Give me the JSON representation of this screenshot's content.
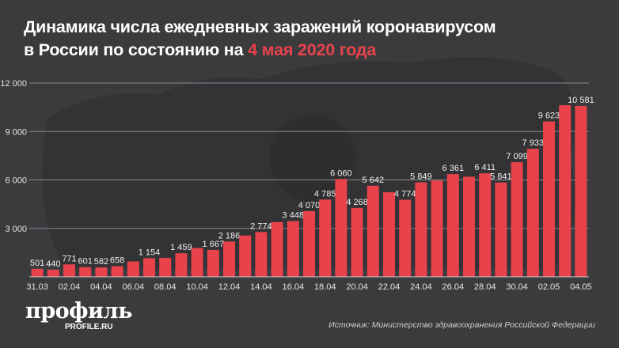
{
  "title": {
    "line1": "Динамика числа ежедневных заражений коронавирусом",
    "line2_prefix": "в России по состоянию на ",
    "line2_accent": "4 мая 2020 года"
  },
  "colors": {
    "background": "#3b3b3e",
    "bar": "#e8434a",
    "accent": "#e8434a",
    "text": "#ffffff"
  },
  "chart_data": {
    "type": "bar",
    "title": "Динамика числа ежедневных заражений коронавирусом в России по состоянию на 4 мая 2020 года",
    "categories": [
      "31.03",
      "01.04",
      "02.04",
      "03.04",
      "04.04",
      "05.04",
      "06.04",
      "07.04",
      "08.04",
      "09.04",
      "10.04",
      "11.04",
      "12.04",
      "13.04",
      "14.04",
      "15.04",
      "16.04",
      "17.04",
      "18.04",
      "19.04",
      "20.04",
      "21.04",
      "22.04",
      "23.04",
      "24.04",
      "25.04",
      "26.04",
      "27.04",
      "28.04",
      "29.04",
      "30.04",
      "01.05",
      "02.05",
      "03.05",
      "04.05"
    ],
    "values": [
      501,
      440,
      771,
      601,
      582,
      658,
      954,
      1154,
      1175,
      1459,
      1786,
      1667,
      2186,
      2558,
      2774,
      3388,
      3448,
      4070,
      4785,
      6060,
      4268,
      5642,
      5236,
      4774,
      5849,
      5966,
      6361,
      6198,
      6411,
      5841,
      7099,
      7933,
      9623,
      10633,
      10581
    ],
    "data_labels": [
      "501",
      "440",
      "771",
      "601",
      "582",
      "658",
      "",
      "1 154",
      "",
      "1 459",
      "",
      "1 667",
      "2 186",
      "",
      "2 774",
      "",
      "3 448",
      "4 070",
      "4 785",
      "6 060",
      "4 268",
      "5 642",
      "",
      "4 774",
      "5 849",
      "",
      "6 361",
      "",
      "6 411",
      "5 841",
      "7 099",
      "7 933",
      "9 623",
      "",
      "10 581"
    ],
    "x_tick_labels": [
      "31.03",
      "02.04",
      "04.04",
      "06.04",
      "08.04",
      "10.04",
      "12.04",
      "14.04",
      "16.04",
      "18.04",
      "20.04",
      "22.04",
      "24.04",
      "26.04",
      "28.04",
      "30.04",
      "02.05",
      "04.05"
    ],
    "y_ticks": [
      3000,
      6000,
      9000,
      12000
    ],
    "y_tick_labels": [
      "3 000",
      "6 000",
      "9 000",
      "12 000"
    ],
    "ylim": [
      0,
      12000
    ],
    "grid": true,
    "xlabel": "",
    "ylabel": ""
  },
  "logo": {
    "name": "профиль",
    "site": "PROFILE.RU"
  },
  "source": "Источник: Министерство здравоохранения Российской Федерации"
}
